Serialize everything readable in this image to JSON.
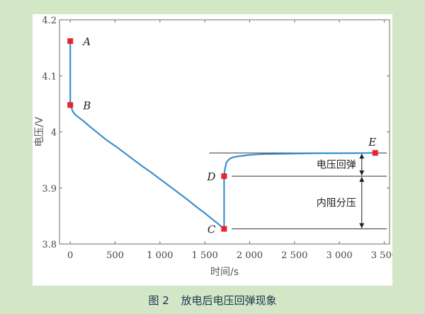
{
  "caption": {
    "figure_number": "图 2",
    "title": "放电后电压回弹现象"
  },
  "chart_data": {
    "type": "line",
    "title": "",
    "xlabel": "时间/s",
    "ylabel": "电压/V",
    "xlim": [
      -120,
      3560
    ],
    "ylim": [
      3.8,
      4.2
    ],
    "xticks": [
      0,
      500,
      1000,
      1500,
      2000,
      2500,
      3000,
      3500
    ],
    "xtick_labels": [
      "0",
      "500",
      "1 000",
      "1 500",
      "2 000",
      "2 500",
      "3 000",
      "3 500"
    ],
    "yticks": [
      3.8,
      3.9,
      4.0,
      4.1,
      4.2
    ],
    "ytick_labels": [
      "3.8",
      "3.9",
      "4",
      "4.1",
      "4.2"
    ],
    "line_color": "#3d8fd0",
    "marker_color": "#e8242c",
    "series": [
      {
        "x": [
          0,
          0,
          10,
          30,
          60,
          100,
          150,
          200,
          300,
          400,
          500,
          600,
          700,
          800,
          900,
          1000,
          1100,
          1200,
          1300,
          1400,
          1500,
          1600,
          1650,
          1690,
          1715,
          1715,
          1720,
          1740,
          1770,
          1800,
          1850,
          1900,
          2000,
          2100,
          2200,
          2400,
          2600,
          2800,
          3000,
          3200,
          3400
        ],
        "y": [
          4.162,
          4.048,
          4.044,
          4.036,
          4.03,
          4.025,
          4.019,
          4.012,
          3.999,
          3.986,
          3.975,
          3.963,
          3.951,
          3.939,
          3.928,
          3.916,
          3.904,
          3.892,
          3.88,
          3.867,
          3.855,
          3.842,
          3.836,
          3.83,
          3.827,
          3.921,
          3.93,
          3.945,
          3.951,
          3.954,
          3.956,
          3.957,
          3.959,
          3.96,
          3.9605,
          3.961,
          3.9615,
          3.962,
          3.962,
          3.9622,
          3.9625
        ]
      }
    ],
    "points": [
      {
        "label": "A",
        "x": 0,
        "y": 4.162
      },
      {
        "label": "B",
        "x": 0,
        "y": 4.048
      },
      {
        "label": "C",
        "x": 1715,
        "y": 3.827
      },
      {
        "label": "D",
        "x": 1715,
        "y": 3.921
      },
      {
        "label": "E",
        "x": 3400,
        "y": 3.9625
      }
    ],
    "reference_lines": [
      {
        "y": 3.9625,
        "x_from": 1550,
        "x_to": 3530
      },
      {
        "y": 3.921,
        "x_from": 1800,
        "x_to": 3530
      },
      {
        "y": 3.827,
        "x_from": 1800,
        "x_to": 3530
      }
    ],
    "annotations": [
      {
        "text": "电压回弹",
        "x": 3250,
        "y_from": 3.921,
        "y_to": 3.9625
      },
      {
        "text": "内阻分压",
        "x": 3250,
        "y_from": 3.827,
        "y_to": 3.921
      }
    ]
  }
}
